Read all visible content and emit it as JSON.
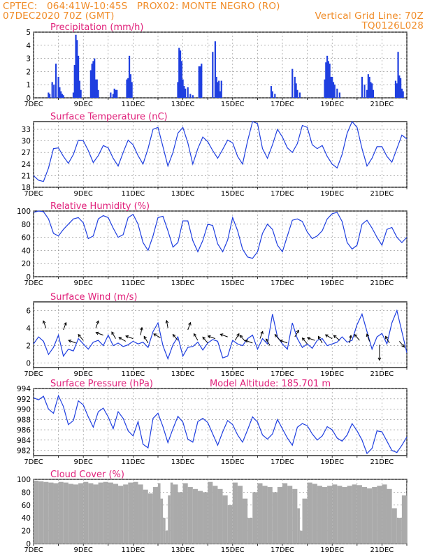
{
  "header": {
    "line1_left": "CPTEC:   064:41W-10:45S   PROX02: MONTE NEGRO (RO)",
    "line2_left": "07DEC2020 70Z (GMT)",
    "line2_right": "Vertical Grid Line: 70Z",
    "line3_right": "TQ0126L028"
  },
  "colors": {
    "header": "#f08c28",
    "title": "#e0207a",
    "line": "#1f3fe0",
    "cloud": "#aaaaaa",
    "grid": "#888888"
  },
  "x_tick_labels": [
    "7DEC",
    "9DEC",
    "11DEC",
    "13DEC",
    "15DEC",
    "17DEC",
    "19DEC",
    "21DEC"
  ],
  "chart_data": [
    {
      "id": "precip",
      "type": "bar",
      "title": "Precipitation (mm/h)",
      "ylim": [
        0,
        5
      ],
      "yticks": [
        0,
        1,
        2,
        3,
        4,
        5
      ],
      "x_day_range": [
        7,
        22
      ],
      "x": [
        7.6,
        7.65,
        7.75,
        7.82,
        7.9,
        8.0,
        8.05,
        8.1,
        8.15,
        8.2,
        8.6,
        8.65,
        8.7,
        8.75,
        8.8,
        8.85,
        8.9,
        9.3,
        9.35,
        9.4,
        9.45,
        9.5,
        9.55,
        9.6,
        10.1,
        10.2,
        10.25,
        10.3,
        10.35,
        10.75,
        10.8,
        10.85,
        10.9,
        10.95,
        12.8,
        12.85,
        12.9,
        12.95,
        13.0,
        13.05,
        13.1,
        13.2,
        13.3,
        13.4,
        13.65,
        13.7,
        13.75,
        14.2,
        14.3,
        14.35,
        14.4,
        14.45,
        14.5,
        14.55,
        16.55,
        16.6,
        16.7,
        17.4,
        17.5,
        17.55,
        17.6,
        17.7,
        18.7,
        18.75,
        18.8,
        18.85,
        18.9,
        18.95,
        19.0,
        19.05,
        19.1,
        19.2,
        19.3,
        20.2,
        20.3,
        20.4,
        20.45,
        20.5,
        20.55,
        20.6,
        20.65,
        21.55,
        21.6,
        21.65,
        21.7,
        21.75,
        21.8,
        21.85
      ],
      "values": [
        0.4,
        0.3,
        1.2,
        1.0,
        2.6,
        1.6,
        0.8,
        0.5,
        0.3,
        0.2,
        0.4,
        2.5,
        4.8,
        4.4,
        3.2,
        1.3,
        0.6,
        2.1,
        2.6,
        2.8,
        3.0,
        1.4,
        1.4,
        0.6,
        0.4,
        0.3,
        0.7,
        0.6,
        0.6,
        1.4,
        1.5,
        3.2,
        1.8,
        1.2,
        1.2,
        3.8,
        3.6,
        2.8,
        1.4,
        0.9,
        0.7,
        0.8,
        0.3,
        0.2,
        2.4,
        2.4,
        2.6,
        3.5,
        4.3,
        1.6,
        1.2,
        1.3,
        0.5,
        1.3,
        0.9,
        0.5,
        0.3,
        2.2,
        1.6,
        1.1,
        0.6,
        0.4,
        1.4,
        2.7,
        3.2,
        2.8,
        2.6,
        1.6,
        1.6,
        1.2,
        1.0,
        0.7,
        0.4,
        1.6,
        1.0,
        0.6,
        1.8,
        1.6,
        1.2,
        1.1,
        0.6,
        1.3,
        1.1,
        3.5,
        1.7,
        1.5,
        0.7,
        0.5
      ]
    },
    {
      "id": "temp",
      "type": "line",
      "title": "Surface Temperature (nC)",
      "ylim": [
        18,
        35
      ],
      "yticks": [
        18,
        21,
        24,
        27,
        30,
        33
      ],
      "x_day_range": [
        7,
        22
      ],
      "x": [
        7.0,
        7.2,
        7.4,
        7.6,
        7.8,
        8.0,
        8.2,
        8.4,
        8.6,
        8.8,
        9.0,
        9.2,
        9.4,
        9.6,
        9.8,
        10.0,
        10.2,
        10.4,
        10.6,
        10.8,
        11.0,
        11.2,
        11.4,
        11.6,
        11.8,
        12.0,
        12.2,
        12.4,
        12.6,
        12.8,
        13.0,
        13.2,
        13.4,
        13.6,
        13.8,
        14.0,
        14.2,
        14.4,
        14.6,
        14.8,
        15.0,
        15.2,
        15.4,
        15.6,
        15.8,
        16.0,
        16.2,
        16.4,
        16.6,
        16.8,
        17.0,
        17.2,
        17.4,
        17.6,
        17.8,
        18.0,
        18.2,
        18.4,
        18.6,
        18.8,
        19.0,
        19.2,
        19.4,
        19.6,
        19.8,
        20.0,
        20.2,
        20.4,
        20.6,
        20.8,
        21.0,
        21.2,
        21.4,
        21.6,
        21.8,
        22.0
      ],
      "values": [
        21,
        19.8,
        19.5,
        23,
        28,
        28.2,
        26,
        24.2,
        26.5,
        30.2,
        30,
        27.5,
        24.4,
        26.2,
        28.8,
        28.2,
        25.5,
        23.5,
        27,
        30.2,
        29,
        26.2,
        24,
        28,
        33,
        33.5,
        28.5,
        23.5,
        27,
        32,
        33.5,
        29.5,
        24,
        28,
        31,
        29.8,
        27.5,
        25.5,
        27.8,
        30.2,
        29.5,
        26,
        24,
        30,
        35,
        34.5,
        28,
        25.5,
        29,
        33,
        31,
        28.2,
        27,
        29.3,
        34,
        33.5,
        29,
        28,
        28.8,
        26,
        24,
        23,
        26.5,
        32,
        35,
        33.5,
        28,
        23.5,
        25.5,
        28.5,
        28.5,
        26,
        24.5,
        28,
        31.5,
        30.5
      ]
    },
    {
      "id": "rh",
      "type": "line",
      "title": "Relative Humidity (%)",
      "ylim": [
        0,
        100
      ],
      "yticks": [
        0,
        20,
        40,
        60,
        80,
        100
      ],
      "x_day_range": [
        7,
        22
      ],
      "x": [
        7.0,
        7.2,
        7.4,
        7.6,
        7.8,
        8.0,
        8.2,
        8.4,
        8.6,
        8.8,
        9.0,
        9.2,
        9.4,
        9.6,
        9.8,
        10.0,
        10.2,
        10.4,
        10.6,
        10.8,
        11.0,
        11.2,
        11.4,
        11.6,
        11.8,
        12.0,
        12.2,
        12.4,
        12.6,
        12.8,
        13.0,
        13.2,
        13.4,
        13.6,
        13.8,
        14.0,
        14.2,
        14.4,
        14.6,
        14.8,
        15.0,
        15.2,
        15.4,
        15.6,
        15.8,
        16.0,
        16.2,
        16.4,
        16.6,
        16.8,
        17.0,
        17.2,
        17.4,
        17.6,
        17.8,
        18.0,
        18.2,
        18.4,
        18.6,
        18.8,
        19.0,
        19.2,
        19.4,
        19.6,
        19.8,
        20.0,
        20.2,
        20.4,
        20.6,
        20.8,
        21.0,
        21.2,
        21.4,
        21.6,
        21.8,
        22.0
      ],
      "values": [
        98,
        100,
        99,
        88,
        66,
        62,
        72,
        80,
        88,
        90,
        82,
        58,
        62,
        88,
        93,
        90,
        74,
        60,
        64,
        90,
        95,
        80,
        52,
        40,
        62,
        90,
        92,
        70,
        45,
        52,
        85,
        85,
        55,
        38,
        55,
        80,
        78,
        50,
        38,
        56,
        90,
        70,
        42,
        30,
        28,
        38,
        66,
        80,
        72,
        48,
        38,
        62,
        86,
        88,
        84,
        68,
        58,
        62,
        70,
        88,
        96,
        98,
        84,
        52,
        42,
        48,
        80,
        86,
        74,
        60,
        48,
        72,
        75,
        60,
        52,
        60
      ]
    },
    {
      "id": "wind",
      "type": "line",
      "title": "Surface Wind (m/s)",
      "ylim": [
        -0.5,
        7
      ],
      "yticks": [
        0,
        2,
        4,
        6
      ],
      "x_day_range": [
        7,
        22
      ],
      "x": [
        7.0,
        7.2,
        7.4,
        7.6,
        7.8,
        8.0,
        8.2,
        8.4,
        8.6,
        8.8,
        9.0,
        9.2,
        9.4,
        9.6,
        9.8,
        10.0,
        10.2,
        10.4,
        10.6,
        10.8,
        11.0,
        11.2,
        11.4,
        11.6,
        11.8,
        12.0,
        12.2,
        12.4,
        12.6,
        12.8,
        13.0,
        13.2,
        13.4,
        13.6,
        13.8,
        14.0,
        14.2,
        14.4,
        14.6,
        14.8,
        15.0,
        15.2,
        15.4,
        15.6,
        15.8,
        16.0,
        16.2,
        16.4,
        16.6,
        16.8,
        17.0,
        17.2,
        17.4,
        17.6,
        17.8,
        18.0,
        18.2,
        18.4,
        18.6,
        18.8,
        19.0,
        19.2,
        19.4,
        19.6,
        19.8,
        20.0,
        20.2,
        20.4,
        20.6,
        20.8,
        21.0,
        21.2,
        21.4,
        21.6,
        21.8,
        22.0
      ],
      "values": [
        2.2,
        3.0,
        2.5,
        1.0,
        1.8,
        3.2,
        0.8,
        1.6,
        1.4,
        2.8,
        2.2,
        1.6,
        2.4,
        2.6,
        2.0,
        3.2,
        2.0,
        2.3,
        1.9,
        2.1,
        2.5,
        2.2,
        2.4,
        1.8,
        3.6,
        4.6,
        2.0,
        0.5,
        2.1,
        3.0,
        0.8,
        1.8,
        1.9,
        2.4,
        1.5,
        2.3,
        2.7,
        2.5,
        0.6,
        0.8,
        2.6,
        2.2,
        2.0,
        2.8,
        3.2,
        1.6,
        2.8,
        2.2,
        5.6,
        3.0,
        2.2,
        1.6,
        4.6,
        2.8,
        1.8,
        2.2,
        1.7,
        2.6,
        2.8,
        2.0,
        2.2,
        2.4,
        3.0,
        2.4,
        2.6,
        4.4,
        5.6,
        3.6,
        1.6,
        3.0,
        3.4,
        2.2,
        4.6,
        6.0,
        3.6,
        1.2
      ]
    },
    {
      "id": "press",
      "type": "line",
      "title": "Surface Pressure (hPa)",
      "annotation": "Model Altitude: 185.701 m",
      "ylim": [
        981,
        994
      ],
      "yticks": [
        982,
        984,
        986,
        988,
        990,
        992,
        994
      ],
      "x_day_range": [
        7,
        22
      ],
      "x": [
        7.0,
        7.2,
        7.4,
        7.6,
        7.8,
        8.0,
        8.2,
        8.4,
        8.6,
        8.8,
        9.0,
        9.2,
        9.4,
        9.6,
        9.8,
        10.0,
        10.2,
        10.4,
        10.6,
        10.8,
        11.0,
        11.2,
        11.4,
        11.6,
        11.8,
        12.0,
        12.2,
        12.4,
        12.6,
        12.8,
        13.0,
        13.2,
        13.4,
        13.6,
        13.8,
        14.0,
        14.2,
        14.4,
        14.6,
        14.8,
        15.0,
        15.2,
        15.4,
        15.6,
        15.8,
        16.0,
        16.2,
        16.4,
        16.6,
        16.8,
        17.0,
        17.2,
        17.4,
        17.6,
        17.8,
        18.0,
        18.2,
        18.4,
        18.6,
        18.8,
        19.0,
        19.2,
        19.4,
        19.6,
        19.8,
        20.0,
        20.2,
        20.4,
        20.6,
        20.8,
        21.0,
        21.2,
        21.4,
        21.6,
        21.8,
        22.0
      ],
      "values": [
        992.2,
        991.8,
        992.5,
        990,
        989.2,
        992.6,
        990.5,
        987,
        987.8,
        991.6,
        990.8,
        988.5,
        986.5,
        989.5,
        990.2,
        988.5,
        986.2,
        989.5,
        988.2,
        985.8,
        984.8,
        987.6,
        983.2,
        982.5,
        988.2,
        989.2,
        986.6,
        983.5,
        986.2,
        988.6,
        987.5,
        984.2,
        983.6,
        987.6,
        988.2,
        987.4,
        985.2,
        983,
        985.6,
        987.8,
        987,
        985,
        983.6,
        986,
        988.5,
        987.5,
        985,
        984.2,
        985.2,
        988,
        986.2,
        984.4,
        983,
        986.5,
        987.2,
        986.8,
        985.2,
        984,
        984.8,
        986.6,
        986,
        984.4,
        983.8,
        985,
        987.2,
        985.8,
        984,
        981.4,
        982.4,
        985.8,
        985.6,
        983.8,
        982,
        981.6,
        983,
        984.6
      ]
    },
    {
      "id": "cloud",
      "type": "area",
      "title": "Cloud Cover (%)",
      "ylim": [
        0,
        100
      ],
      "yticks": [
        0,
        20,
        40,
        60,
        80,
        100
      ],
      "x_day_range": [
        7,
        22
      ],
      "x": [
        7.0,
        7.2,
        7.4,
        7.6,
        7.8,
        8.0,
        8.2,
        8.4,
        8.6,
        8.8,
        9.0,
        9.2,
        9.4,
        9.6,
        9.8,
        10.0,
        10.2,
        10.4,
        10.6,
        10.8,
        11.0,
        11.2,
        11.4,
        11.6,
        11.8,
        12.0,
        12.1,
        12.2,
        12.3,
        12.4,
        12.5,
        12.6,
        12.8,
        13.0,
        13.2,
        13.4,
        13.6,
        13.8,
        14.0,
        14.2,
        14.4,
        14.6,
        14.8,
        15.0,
        15.2,
        15.4,
        15.6,
        15.8,
        16.0,
        16.2,
        16.4,
        16.6,
        16.8,
        17.0,
        17.2,
        17.4,
        17.6,
        17.7,
        17.8,
        18.0,
        18.2,
        18.4,
        18.6,
        18.8,
        19.0,
        19.2,
        19.4,
        19.6,
        19.8,
        20.0,
        20.2,
        20.4,
        20.6,
        20.8,
        21.0,
        21.2,
        21.4,
        21.6,
        21.8,
        22.0
      ],
      "values": [
        98,
        97,
        96,
        95,
        94,
        96,
        95,
        93,
        92,
        94,
        96,
        94,
        92,
        95,
        96,
        95,
        93,
        90,
        92,
        95,
        96,
        92,
        84,
        78,
        88,
        94,
        70,
        40,
        20,
        75,
        95,
        92,
        80,
        94,
        88,
        85,
        82,
        80,
        96,
        90,
        85,
        75,
        60,
        95,
        90,
        70,
        40,
        80,
        94,
        90,
        88,
        80,
        88,
        94,
        90,
        85,
        55,
        20,
        70,
        95,
        93,
        90,
        88,
        90,
        92,
        90,
        88,
        90,
        92,
        91,
        88,
        86,
        88,
        90,
        92,
        85,
        55,
        40,
        75,
        95
      ]
    },
    {
      "id": "wind_arrows",
      "type": "scatter",
      "title": "",
      "x": [
        7.5,
        8.2,
        8.7,
        9.0,
        9.5,
        9.8,
        10.3,
        10.7,
        11.0,
        11.3,
        11.6,
        12.1,
        12.4,
        12.8,
        13.2,
        13.6,
        14.0,
        14.3,
        14.8,
        15.1,
        15.5,
        15.8,
        16.1,
        16.5,
        16.9,
        17.2,
        17.5,
        18.0,
        18.3,
        18.6,
        19.0,
        19.3,
        19.7,
        20.1,
        20.5,
        20.9,
        21.3,
        21.7
      ],
      "values": [
        4.0,
        3.8,
        2.3,
        2.6,
        4.0,
        3.2,
        2.8,
        2.5,
        2.8,
        3.2,
        2.3,
        2.9,
        4.0,
        2.6,
        3.8,
        2.6,
        2.3,
        2.8,
        3.0,
        2.6,
        2.5,
        2.3,
        2.8,
        2.0,
        2.6,
        2.3,
        3.0,
        2.2,
        2.6,
        2.3,
        2.8,
        2.6,
        2.3,
        2.6,
        2.5,
        2.1,
        2.3,
        2.5
      ]
    }
  ]
}
